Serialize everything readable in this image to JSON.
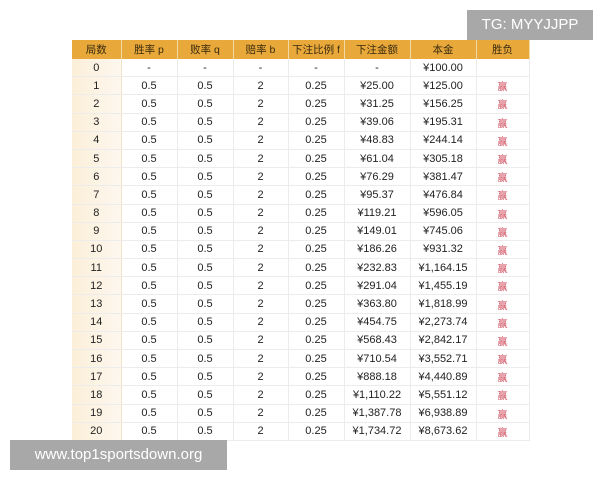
{
  "watermark_tg": "TG: MYYJJPP",
  "watermark_url": "www.top1sportsdown.org",
  "colors": {
    "header_bg": "#e8a93a",
    "win_text": "#d04a5a",
    "first_col_bg": "#fcefd9"
  },
  "table": {
    "headers": [
      "局数",
      "胜率 p",
      "败率 q",
      "赔率 b",
      "下注比例 f",
      "下注金额",
      "本金",
      "胜负"
    ],
    "rows": [
      [
        "0",
        "-",
        "-",
        "-",
        "-",
        "-",
        "¥100.00",
        ""
      ],
      [
        "1",
        "0.5",
        "0.5",
        "2",
        "0.25",
        "¥25.00",
        "¥125.00",
        "赢"
      ],
      [
        "2",
        "0.5",
        "0.5",
        "2",
        "0.25",
        "¥31.25",
        "¥156.25",
        "赢"
      ],
      [
        "3",
        "0.5",
        "0.5",
        "2",
        "0.25",
        "¥39.06",
        "¥195.31",
        "赢"
      ],
      [
        "4",
        "0.5",
        "0.5",
        "2",
        "0.25",
        "¥48.83",
        "¥244.14",
        "赢"
      ],
      [
        "5",
        "0.5",
        "0.5",
        "2",
        "0.25",
        "¥61.04",
        "¥305.18",
        "赢"
      ],
      [
        "6",
        "0.5",
        "0.5",
        "2",
        "0.25",
        "¥76.29",
        "¥381.47",
        "赢"
      ],
      [
        "7",
        "0.5",
        "0.5",
        "2",
        "0.25",
        "¥95.37",
        "¥476.84",
        "赢"
      ],
      [
        "8",
        "0.5",
        "0.5",
        "2",
        "0.25",
        "¥119.21",
        "¥596.05",
        "赢"
      ],
      [
        "9",
        "0.5",
        "0.5",
        "2",
        "0.25",
        "¥149.01",
        "¥745.06",
        "赢"
      ],
      [
        "10",
        "0.5",
        "0.5",
        "2",
        "0.25",
        "¥186.26",
        "¥931.32",
        "赢"
      ],
      [
        "11",
        "0.5",
        "0.5",
        "2",
        "0.25",
        "¥232.83",
        "¥1,164.15",
        "赢"
      ],
      [
        "12",
        "0.5",
        "0.5",
        "2",
        "0.25",
        "¥291.04",
        "¥1,455.19",
        "赢"
      ],
      [
        "13",
        "0.5",
        "0.5",
        "2",
        "0.25",
        "¥363.80",
        "¥1,818.99",
        "赢"
      ],
      [
        "14",
        "0.5",
        "0.5",
        "2",
        "0.25",
        "¥454.75",
        "¥2,273.74",
        "赢"
      ],
      [
        "15",
        "0.5",
        "0.5",
        "2",
        "0.25",
        "¥568.43",
        "¥2,842.17",
        "赢"
      ],
      [
        "16",
        "0.5",
        "0.5",
        "2",
        "0.25",
        "¥710.54",
        "¥3,552.71",
        "赢"
      ],
      [
        "17",
        "0.5",
        "0.5",
        "2",
        "0.25",
        "¥888.18",
        "¥4,440.89",
        "赢"
      ],
      [
        "18",
        "0.5",
        "0.5",
        "2",
        "0.25",
        "¥1,110.22",
        "¥5,551.12",
        "赢"
      ],
      [
        "19",
        "0.5",
        "0.5",
        "2",
        "0.25",
        "¥1,387.78",
        "¥6,938.89",
        "赢"
      ],
      [
        "20",
        "0.5",
        "0.5",
        "2",
        "0.25",
        "¥1,734.72",
        "¥8,673.62",
        "赢"
      ]
    ]
  }
}
